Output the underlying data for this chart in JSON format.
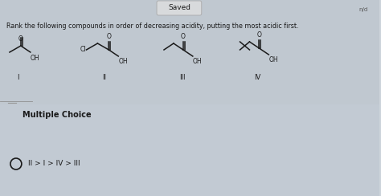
{
  "bg_top": "#c8cdd4",
  "bg_mid": "#cdd4db",
  "bg_bottom": "#c5cdd6",
  "saved_label": "Saved",
  "saved_btn_color": "#d8dadc",
  "saved_btn_edge": "#aaaaaa",
  "question_text": "Rank the following compounds in order of decreasing acidity, putting the most acidic first.",
  "section_label": "Multiple Choice",
  "answer_text": "II > I > IV > III",
  "compound_labels": [
    "I",
    "II",
    "III",
    "IV"
  ],
  "font_color": "#1a1a1a",
  "divider_color": "#aaaaaa",
  "mc_bg": "#c2cad3",
  "top_bg": "#c0c8d0"
}
